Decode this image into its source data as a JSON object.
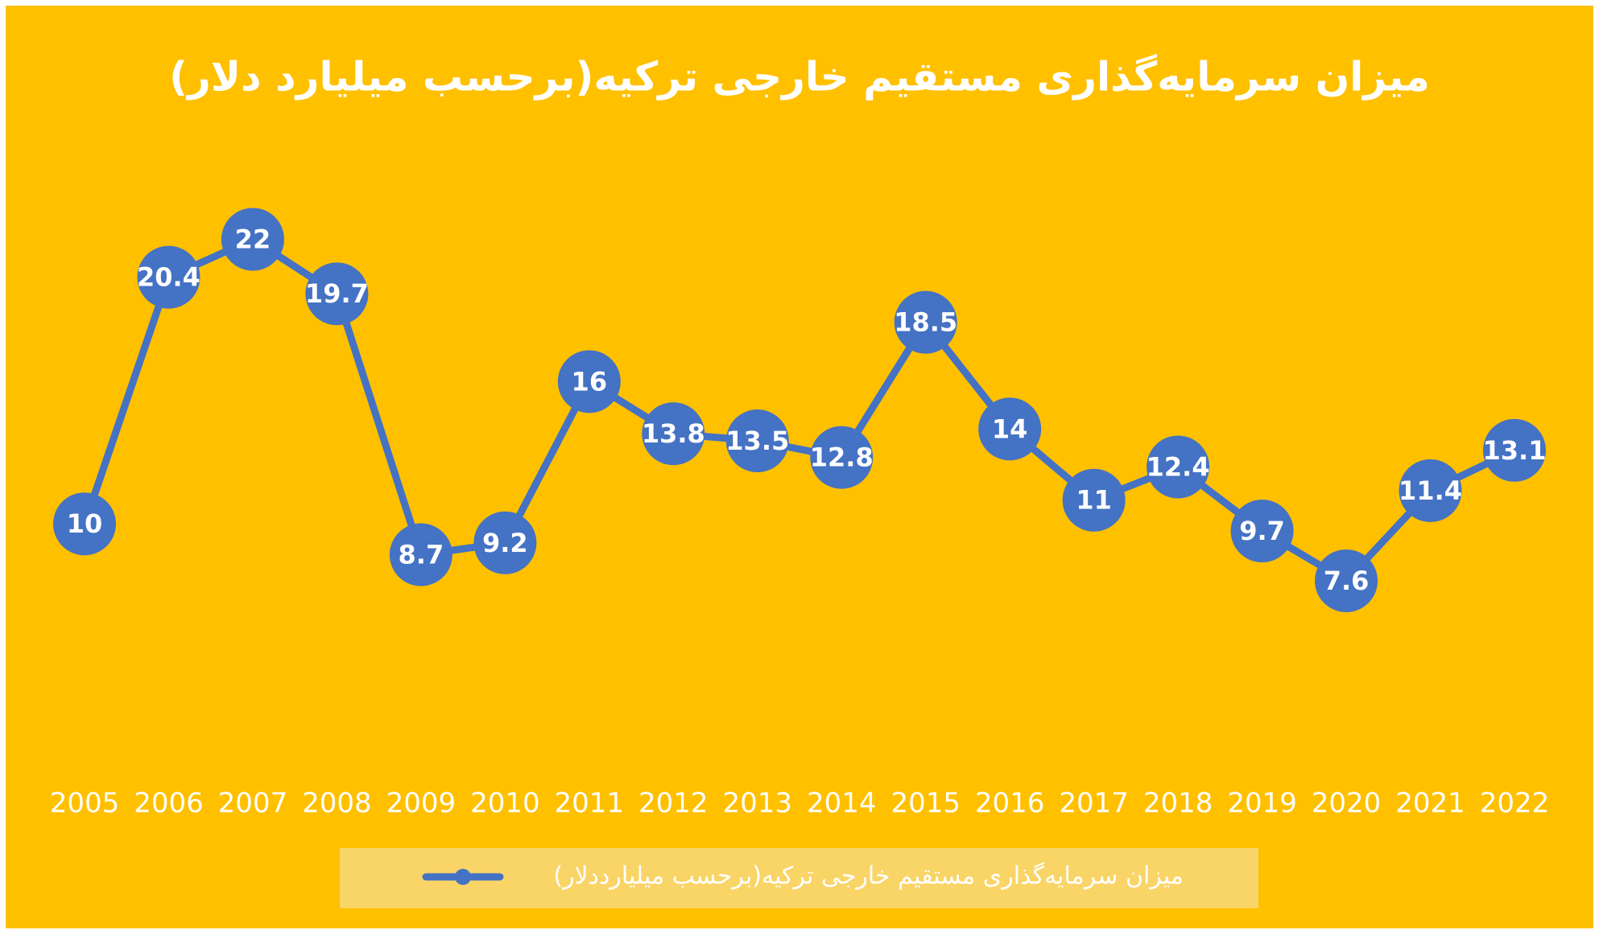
{
  "chart_data": {
    "type": "line",
    "title": "میزان سرمایه‌گذاری مستقیم خارجی ترکیه(برحسب میلیارد دلار)",
    "categories": [
      "2005",
      "2006",
      "2007",
      "2008",
      "2009",
      "2010",
      "2011",
      "2012",
      "2013",
      "2014",
      "2015",
      "2016",
      "2017",
      "2018",
      "2019",
      "2020",
      "2021",
      "2022"
    ],
    "series": [
      {
        "name": "میزان سرمایه‌گذاری مستقیم خارجی ترکیه(برحسب میلیارددلار)",
        "color": "#4472c4",
        "values": [
          10,
          20.4,
          22,
          19.7,
          8.7,
          9.2,
          16,
          13.8,
          13.5,
          12.8,
          18.5,
          14,
          11,
          12.4,
          9.7,
          7.6,
          11.4,
          13.1
        ]
      }
    ],
    "ylim": [
      0,
      25
    ],
    "legend": "bottom",
    "background": "#ffc000"
  }
}
